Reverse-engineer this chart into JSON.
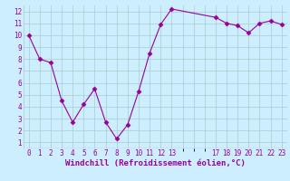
{
  "x": [
    0,
    1,
    2,
    3,
    4,
    5,
    6,
    7,
    8,
    9,
    10,
    11,
    12,
    13,
    17,
    18,
    19,
    20,
    21,
    22,
    23
  ],
  "y": [
    10.0,
    8.0,
    7.7,
    4.5,
    2.7,
    4.2,
    5.5,
    2.7,
    1.3,
    2.5,
    5.3,
    8.5,
    10.9,
    12.2,
    11.5,
    11.0,
    10.8,
    10.2,
    11.0,
    11.2,
    10.9
  ],
  "xlim": [
    -0.5,
    23.5
  ],
  "ylim": [
    0.5,
    12.5
  ],
  "xticks": [
    0,
    1,
    2,
    3,
    4,
    5,
    6,
    7,
    8,
    9,
    10,
    11,
    12,
    13,
    17,
    18,
    19,
    20,
    21,
    22,
    23
  ],
  "yticks": [
    1,
    2,
    3,
    4,
    5,
    6,
    7,
    8,
    9,
    10,
    11,
    12
  ],
  "xlabel": "Windchill (Refroidissement éolien,°C)",
  "line_color": "#990099",
  "marker": "D",
  "marker_size": 2.5,
  "bg_color": "#cceeff",
  "grid_color": "#aacccc",
  "xlabel_fontsize": 6.5,
  "tick_fontsize": 5.5,
  "xlabel_color": "#990099",
  "tick_color": "#990099"
}
